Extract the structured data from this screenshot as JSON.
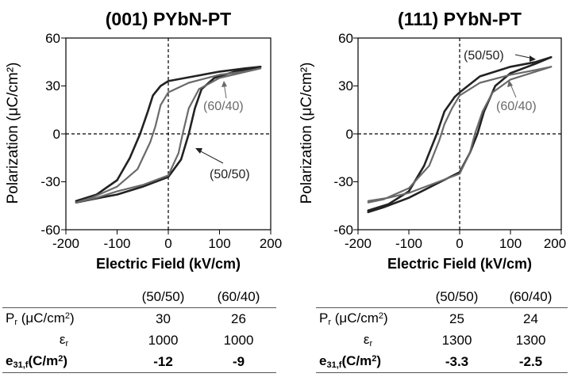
{
  "chart_data": [
    {
      "type": "line",
      "title": "(001) PYbN-PT",
      "xlabel": "Electric Field (kV/cm)",
      "ylabel": "Polarization (μC/cm²)",
      "xlim": [
        -200,
        200
      ],
      "ylim": [
        -60,
        60
      ],
      "xticks": [
        "-200",
        "-100",
        "0",
        "100",
        "200"
      ],
      "yticks": [
        "-60",
        "-30",
        "0",
        "30",
        "60"
      ],
      "series": [
        {
          "name": "(50/50)",
          "color": "#222222",
          "upper": [
            [
              -180,
              -42
            ],
            [
              -140,
              -38
            ],
            [
              -100,
              -29
            ],
            [
              -75,
              -15
            ],
            [
              -55,
              0
            ],
            [
              -40,
              14
            ],
            [
              -30,
              24
            ],
            [
              -15,
              30
            ],
            [
              0,
              33
            ],
            [
              50,
              36
            ],
            [
              100,
              39
            ],
            [
              150,
              41
            ],
            [
              180,
              42
            ]
          ],
          "lower": [
            [
              -180,
              -43
            ],
            [
              -150,
              -41
            ],
            [
              -100,
              -38
            ],
            [
              -50,
              -33
            ],
            [
              0,
              -27
            ],
            [
              25,
              -16
            ],
            [
              40,
              0
            ],
            [
              52,
              16
            ],
            [
              65,
              28
            ],
            [
              90,
              35
            ],
            [
              130,
              39
            ],
            [
              180,
              42
            ]
          ]
        },
        {
          "name": "(60/40)",
          "color": "#6a6a6a",
          "upper": [
            [
              -180,
              -43
            ],
            [
              -150,
              -40
            ],
            [
              -100,
              -33
            ],
            [
              -60,
              -22
            ],
            [
              -35,
              -5
            ],
            [
              -25,
              5
            ],
            [
              -15,
              18
            ],
            [
              0,
              26
            ],
            [
              40,
              32
            ],
            [
              100,
              37
            ],
            [
              150,
              39
            ],
            [
              180,
              41
            ]
          ],
          "lower": [
            [
              -180,
              -43
            ],
            [
              -140,
              -40
            ],
            [
              -100,
              -36
            ],
            [
              -50,
              -32
            ],
            [
              0,
              -26
            ],
            [
              20,
              -12
            ],
            [
              28,
              0
            ],
            [
              40,
              16
            ],
            [
              60,
              28
            ],
            [
              100,
              35
            ],
            [
              180,
              41
            ]
          ]
        }
      ],
      "annotations": [
        "(60/40)",
        "(50/50)"
      ]
    },
    {
      "type": "line",
      "title": "(111) PYbN-PT",
      "xlabel": "Electric Field (kV/cm)",
      "ylabel": "Polarization (μC/cm²)",
      "xlim": [
        -200,
        200
      ],
      "ylim": [
        -60,
        60
      ],
      "xticks": [
        "-200",
        "-100",
        "0",
        "100",
        "200"
      ],
      "yticks": [
        "-60",
        "-30",
        "0",
        "30",
        "60"
      ],
      "series": [
        {
          "name": "(50/50)",
          "color": "#222222",
          "upper": [
            [
              -180,
              -48
            ],
            [
              -140,
              -44
            ],
            [
              -100,
              -36
            ],
            [
              -70,
              -20
            ],
            [
              -45,
              0
            ],
            [
              -30,
              14
            ],
            [
              -10,
              23
            ],
            [
              0,
              26
            ],
            [
              40,
              36
            ],
            [
              100,
              42
            ],
            [
              150,
              45
            ],
            [
              180,
              48
            ]
          ],
          "lower": [
            [
              -180,
              -49
            ],
            [
              -150,
              -46
            ],
            [
              -100,
              -40
            ],
            [
              -50,
              -32
            ],
            [
              0,
              -24
            ],
            [
              20,
              -12
            ],
            [
              35,
              0
            ],
            [
              48,
              14
            ],
            [
              70,
              30
            ],
            [
              100,
              38
            ],
            [
              150,
              44
            ],
            [
              180,
              48
            ]
          ]
        },
        {
          "name": "(60/40)",
          "color": "#6a6a6a",
          "upper": [
            [
              -180,
              -43
            ],
            [
              -150,
              -41
            ],
            [
              -100,
              -34
            ],
            [
              -60,
              -20
            ],
            [
              -40,
              -4
            ],
            [
              -30,
              6
            ],
            [
              -15,
              16
            ],
            [
              0,
              24
            ],
            [
              40,
              32
            ],
            [
              100,
              37
            ],
            [
              150,
              40
            ],
            [
              180,
              42
            ]
          ],
          "lower": [
            [
              -180,
              -42
            ],
            [
              -140,
              -40
            ],
            [
              -100,
              -37
            ],
            [
              -50,
              -31
            ],
            [
              0,
              -25
            ],
            [
              20,
              -12
            ],
            [
              30,
              0
            ],
            [
              45,
              14
            ],
            [
              65,
              26
            ],
            [
              100,
              34
            ],
            [
              180,
              42
            ]
          ]
        }
      ],
      "annotations": [
        "(50/50)",
        "(60/40)"
      ]
    }
  ],
  "tables": [
    {
      "columns": [
        "(50/50)",
        "(60/40)"
      ],
      "rows": [
        {
          "label_main": "P",
          "label_sub": "r",
          "label_unit": "(μC/cm",
          "label_sup": "2",
          "label_end": ")",
          "values": [
            "30",
            "26"
          ]
        },
        {
          "label_main": "ε",
          "label_sub": "r",
          "values": [
            "1000",
            "1000"
          ]
        },
        {
          "label_main": "e",
          "label_sub": "31,f",
          "label_unit": "(C/m",
          "label_sup": "2",
          "label_end": ")",
          "values": [
            "-12",
            "-9"
          ]
        }
      ]
    },
    {
      "columns": [
        "(50/50)",
        "(60/40)"
      ],
      "rows": [
        {
          "label_main": "P",
          "label_sub": "r",
          "label_unit": "(μC/cm",
          "label_sup": "2",
          "label_end": ")",
          "values": [
            "25",
            "24"
          ]
        },
        {
          "label_main": "ε",
          "label_sub": "r",
          "values": [
            "1300",
            "1300"
          ]
        },
        {
          "label_main": "e",
          "label_sub": "31,f",
          "label_unit": "(C/m",
          "label_sup": "2",
          "label_end": ")",
          "values": [
            "-3.3",
            "-2.5"
          ]
        }
      ]
    }
  ]
}
